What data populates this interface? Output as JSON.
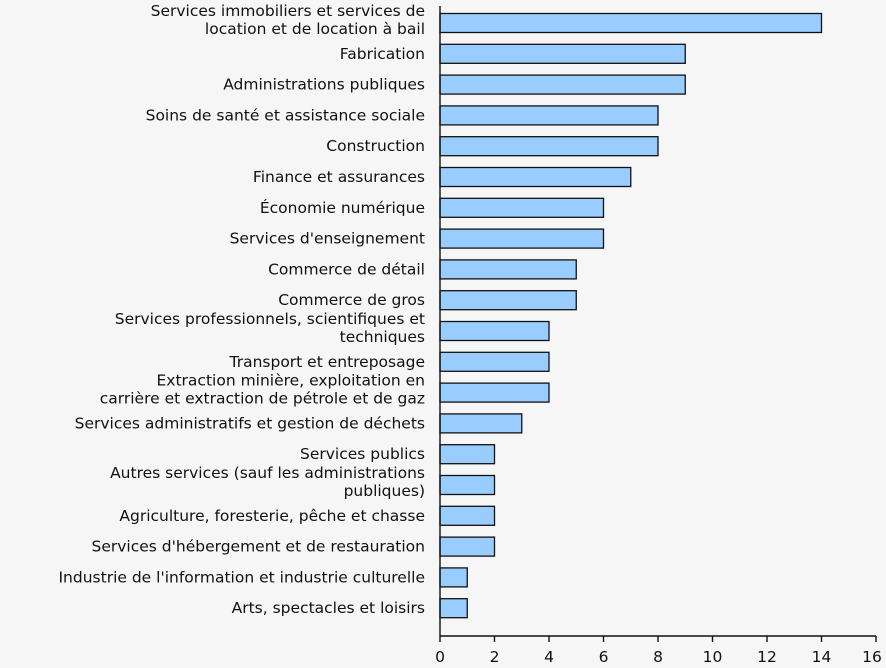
{
  "chart_data": {
    "type": "bar",
    "orientation": "horizontal",
    "categories": [
      "Services immobiliers et services de location et de location à bail",
      "Fabrication",
      "Administrations publiques",
      "Soins de santé et assistance sociale",
      "Construction",
      "Finance et assurances",
      "Économie numérique",
      "Services d'enseignement",
      "Commerce de détail",
      "Commerce de gros",
      "Services professionnels, scientifiques et techniques",
      "Transport et entreposage",
      "Extraction minière, exploitation en carrière et extraction de pétrole et de gaz",
      "Services administratifs et gestion de déchets",
      "Services publics",
      "Autres services (sauf les administrations publiques)",
      "Agriculture, foresterie, pêche et chasse",
      "Services d'hébergement et de restauration",
      "Industrie de l'information et industrie culturelle",
      "Arts, spectacles et loisirs"
    ],
    "category_lines": [
      [
        "Services immobiliers et services de",
        "location et de location à bail"
      ],
      [
        "Fabrication"
      ],
      [
        "Administrations publiques"
      ],
      [
        "Soins de santé et assistance sociale"
      ],
      [
        "Construction"
      ],
      [
        "Finance et assurances"
      ],
      [
        "Économie numérique"
      ],
      [
        "Services d'enseignement"
      ],
      [
        "Commerce de détail"
      ],
      [
        "Commerce de gros"
      ],
      [
        "Services professionnels, scientifiques et",
        "techniques"
      ],
      [
        "Transport et entreposage"
      ],
      [
        "Extraction minière, exploitation en",
        "carrière et extraction de pétrole et de gaz"
      ],
      [
        "Services administratifs et gestion de déchets"
      ],
      [
        "Services publics"
      ],
      [
        "Autres services (sauf les administrations",
        "publiques)"
      ],
      [
        "Agriculture, foresterie, pêche et chasse"
      ],
      [
        "Services d'hébergement et de restauration"
      ],
      [
        "Industrie de l'information et industrie culturelle"
      ],
      [
        "Arts, spectacles et loisirs"
      ]
    ],
    "values": [
      14,
      9,
      9,
      8,
      8,
      7,
      6,
      6,
      5,
      5,
      4,
      4,
      4,
      3,
      2,
      2,
      2,
      2,
      1,
      1
    ],
    "xlim": [
      0,
      16
    ],
    "xticks": [
      "0",
      "2",
      "4",
      "6",
      "8",
      "10",
      "12",
      "14",
      "16"
    ],
    "grid": false,
    "colors": {
      "bar_fill": "#99ccff",
      "bar_stroke": "#111111",
      "background": "#f6f6f6"
    }
  }
}
